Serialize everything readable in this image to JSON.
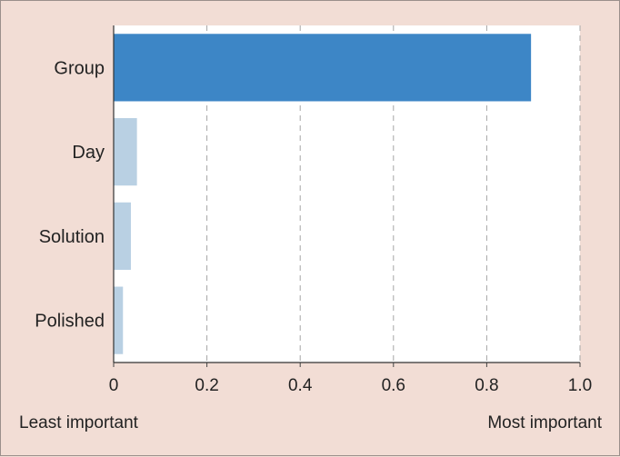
{
  "chart_data": {
    "type": "bar",
    "orientation": "horizontal",
    "categories": [
      "Group",
      "Day",
      "Solution",
      "Polished"
    ],
    "values": [
      0.895,
      0.05,
      0.037,
      0.02
    ],
    "highlight_index": 0,
    "xlim": [
      0,
      1.0
    ],
    "xticks": [
      "0",
      "0.2",
      "0.4",
      "0.6",
      "0.8",
      "1.0"
    ],
    "xtick_values": [
      0,
      0.2,
      0.4,
      0.6,
      0.8,
      1.0
    ],
    "grid": "vertical-dashed",
    "left_caption": "Least important",
    "right_caption": "Most important",
    "colors": {
      "highlight_bar": "#3d86c6",
      "other_bar": "#b9d0e3",
      "plot_bg": "#ffffff",
      "page_bg": "#f2ddd5",
      "grid": "#a6a6a6"
    }
  }
}
